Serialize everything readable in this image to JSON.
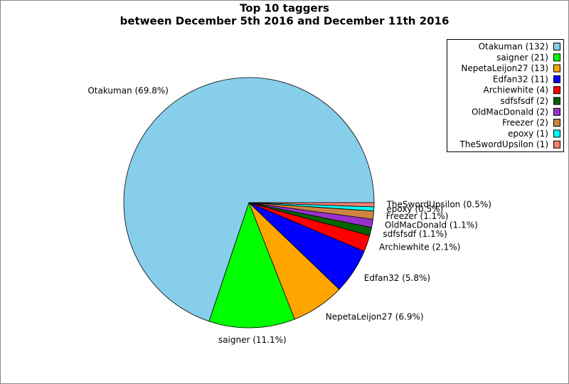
{
  "chart_data": {
    "type": "pie",
    "title": "Top 10 taggers",
    "subtitle": "between December 5th 2016 and December 11th 2016",
    "categories": [
      "Otakuman (132)",
      "saigner (21)",
      "NepetaLeijon27 (13)",
      "Edfan32 (11)",
      "Archiewhite (4)",
      "sdfsfsdf (2)",
      "OldMacDonald (2)",
      "Freezer (2)",
      "epoxy (1)",
      "TheSwordUpsilon (1)"
    ],
    "values": [
      132,
      21,
      13,
      11,
      4,
      2,
      2,
      2,
      1,
      1
    ],
    "labels": [
      "Otakuman (69.8%)",
      "saigner (11.1%)",
      "NepetaLeijon27 (6.9%)",
      "Edfan32 (5.8%)",
      "Archiewhite (2.1%)",
      "sdfsfsdf (1.1%)",
      "OldMacDonald (1.1%)",
      "Freezer (1.1%)",
      "epoxy (0.5%)",
      "TheSwordUpsilon (0.5%)"
    ],
    "colors": [
      "#87ceeb",
      "#00ff00",
      "#ffa500",
      "#0000ff",
      "#ff0000",
      "#006400",
      "#9932cc",
      "#cd853f",
      "#00ffff",
      "#fa8072"
    ],
    "legend": "upper right"
  }
}
